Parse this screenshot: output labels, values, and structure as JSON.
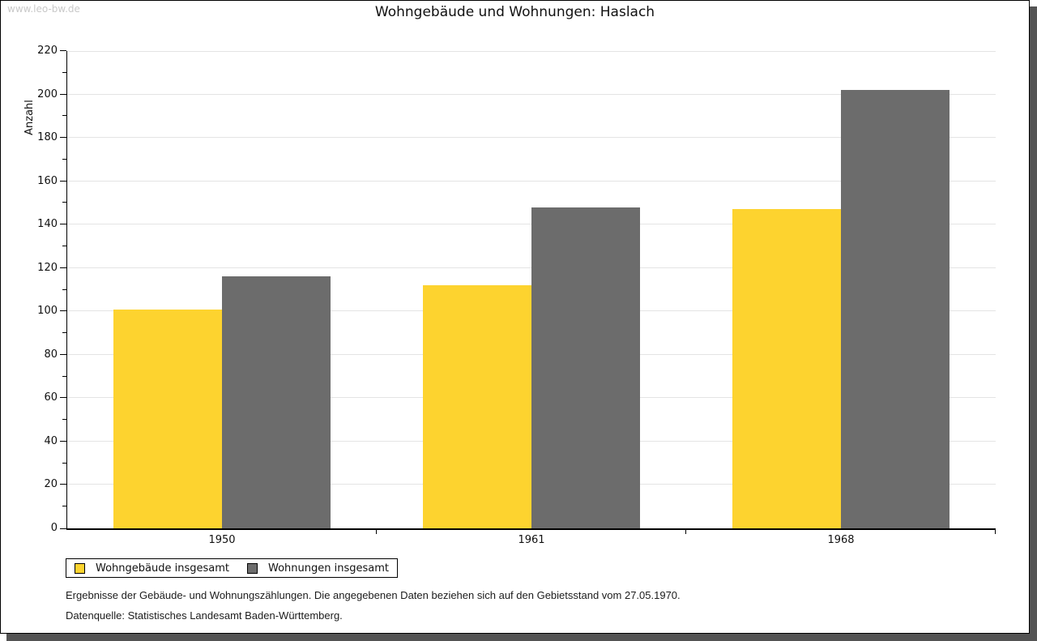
{
  "page": {
    "watermark": "www.leo-bw.de"
  },
  "chart_data": {
    "type": "bar",
    "title": "Wohngebäude und Wohnungen: Haslach",
    "ylabel": "Anzahl",
    "xlabel": "",
    "categories": [
      "1950",
      "1961",
      "1968"
    ],
    "series": [
      {
        "name": "Wohngebäude insgesamt",
        "color": "#fdd32f",
        "values": [
          101,
          112,
          147
        ]
      },
      {
        "name": "Wohnungen insgesamt",
        "color": "#6c6c6c",
        "values": [
          116,
          148,
          202
        ]
      }
    ],
    "ylim": [
      0,
      220
    ],
    "yticks": [
      0,
      20,
      40,
      60,
      80,
      100,
      120,
      140,
      160,
      180,
      200,
      220
    ],
    "minor_ytick_step": 10,
    "grid": true,
    "legend_position": "bottom-left"
  },
  "footer": {
    "line1": "Ergebnisse der Gebäude- und Wohnungszählungen. Die angegebenen Daten beziehen sich auf den Gebietsstand vom 27.05.1970.",
    "line2": "Datenquelle: Statistisches Landesamt Baden-Württemberg."
  },
  "colors": {
    "bar_yellow": "#fdd32f",
    "bar_gray": "#6c6c6c",
    "gridline": "#e4e4e4",
    "axis": "#000000",
    "shadow": "#545454",
    "watermark_text": "#c9c9c9"
  }
}
